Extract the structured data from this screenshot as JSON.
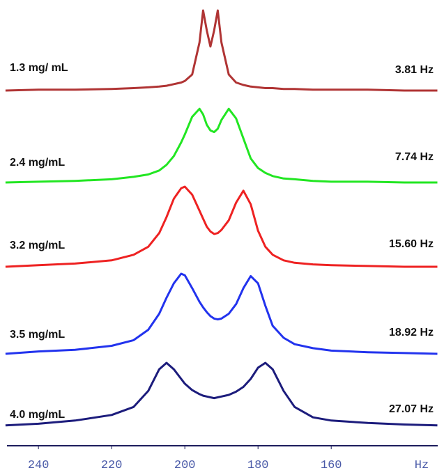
{
  "chart_data": {
    "type": "line",
    "x_label": "Hz",
    "xlim": [
      248.6,
      130.9
    ],
    "xticks": [
      240,
      220,
      200,
      180,
      160
    ],
    "x": [
      249,
      240,
      230,
      220,
      214,
      210,
      207,
      205,
      203,
      201,
      200,
      198,
      196,
      195,
      194,
      193,
      192,
      191,
      190,
      188,
      186,
      184,
      182,
      180,
      178,
      176,
      173,
      170,
      165,
      160,
      150,
      140,
      131
    ],
    "series": [
      {
        "name": "1.3 mg/ mL",
        "splitting": "3.81 Hz",
        "color": "#b03434",
        "values": [
          0,
          0.01,
          0.01,
          0.02,
          0.03,
          0.04,
          0.05,
          0.06,
          0.08,
          0.1,
          0.12,
          0.2,
          0.6,
          1,
          0.75,
          0.55,
          0.75,
          1,
          0.6,
          0.2,
          0.1,
          0.07,
          0.05,
          0.04,
          0.03,
          0.03,
          0.02,
          0.02,
          0.01,
          0.01,
          0.01,
          0,
          0
        ]
      },
      {
        "name": "2.4 mg/mL",
        "splitting": "7.74 Hz",
        "color": "#22e622",
        "values": [
          0,
          0.01,
          0.02,
          0.04,
          0.07,
          0.1,
          0.15,
          0.22,
          0.33,
          0.5,
          0.6,
          0.82,
          0.92,
          0.85,
          0.72,
          0.65,
          0.63,
          0.67,
          0.78,
          0.92,
          0.8,
          0.55,
          0.3,
          0.18,
          0.12,
          0.08,
          0.05,
          0.04,
          0.02,
          0.01,
          0.01,
          0,
          0
        ]
      },
      {
        "name": "3.2 mg/mL",
        "splitting": "15.60 Hz",
        "color": "#ee2222",
        "values": [
          0,
          0.02,
          0.04,
          0.08,
          0.15,
          0.25,
          0.42,
          0.62,
          0.85,
          0.98,
          1,
          0.9,
          0.7,
          0.6,
          0.5,
          0.44,
          0.41,
          0.42,
          0.46,
          0.58,
          0.8,
          0.95,
          0.78,
          0.45,
          0.25,
          0.15,
          0.08,
          0.05,
          0.03,
          0.02,
          0.01,
          0,
          0
        ]
      },
      {
        "name": "3.5 mg/mL",
        "splitting": "18.92 Hz",
        "color": "#2233ee",
        "values": [
          0,
          0.03,
          0.05,
          0.1,
          0.17,
          0.3,
          0.5,
          0.7,
          0.88,
          1,
          0.98,
          0.82,
          0.65,
          0.58,
          0.52,
          0.47,
          0.44,
          0.43,
          0.44,
          0.5,
          0.62,
          0.82,
          0.97,
          0.88,
          0.6,
          0.35,
          0.2,
          0.12,
          0.07,
          0.04,
          0.02,
          0.01,
          0
        ]
      },
      {
        "name": "4.0 mg/mL",
        "splitting": "27.07 Hz",
        "color": "#1c1c7c",
        "values": [
          0.02,
          0.04,
          0.08,
          0.15,
          0.25,
          0.45,
          0.72,
          0.8,
          0.72,
          0.6,
          0.54,
          0.46,
          0.41,
          0.39,
          0.38,
          0.37,
          0.36,
          0.37,
          0.38,
          0.4,
          0.44,
          0.5,
          0.6,
          0.74,
          0.8,
          0.72,
          0.45,
          0.25,
          0.12,
          0.08,
          0.05,
          0.03,
          0.02
        ]
      }
    ]
  }
}
